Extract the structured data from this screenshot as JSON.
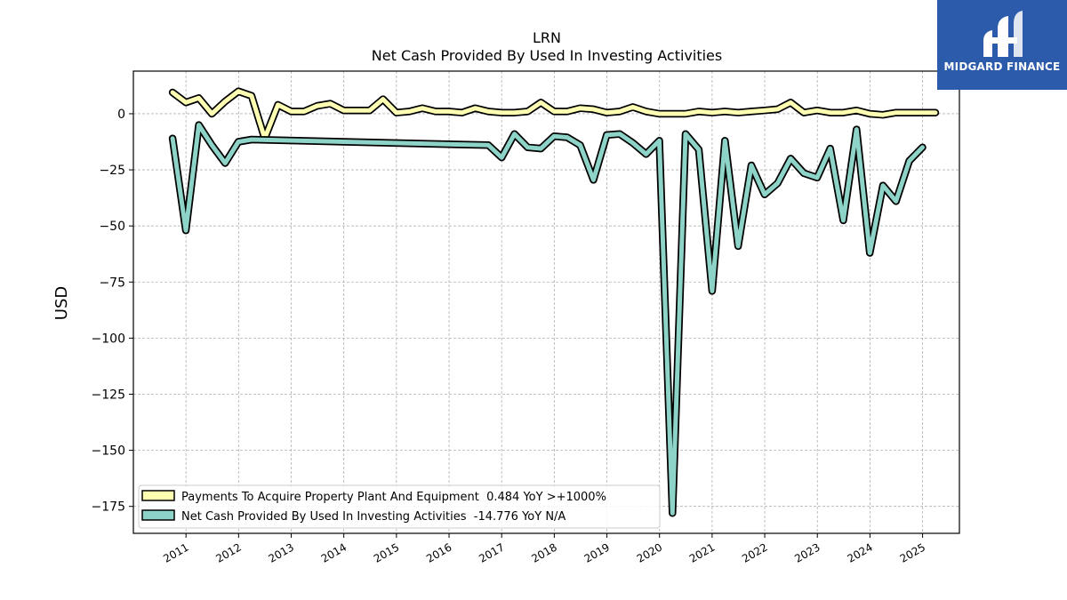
{
  "brand": {
    "name": "MIDGARD FINANCE",
    "color": "#2b5baa"
  },
  "chart_data": {
    "type": "line",
    "title": "LRN",
    "subtitle": "Net Cash Provided By Used In Investing Activities",
    "ylabel": "USD",
    "xlabel": "",
    "ylim": [
      -187,
      19
    ],
    "xlim": [
      2010.0,
      2025.7
    ],
    "yticks": [
      0,
      -25,
      -50,
      -75,
      -100,
      -125,
      -150,
      -175
    ],
    "xticks": [
      2011,
      2012,
      2013,
      2014,
      2015,
      2016,
      2017,
      2018,
      2019,
      2020,
      2021,
      2022,
      2023,
      2024,
      2025
    ],
    "grid": true,
    "legend_position": "lower-left",
    "series": [
      {
        "name": "Payments To Acquire Property Plant And Equipment  0.484 YoY >+1000%",
        "color": "#ffffb3",
        "x": [
          "2010-09-30",
          "2010-12-31",
          "2011-03-31",
          "2011-06-30",
          "2011-09-30",
          "2011-12-31",
          "2012-03-31",
          "2012-06-30",
          "2012-09-30",
          "2012-12-31",
          "2013-03-31",
          "2013-06-30",
          "2013-09-30",
          "2013-12-31",
          "2014-03-31",
          "2014-06-30",
          "2014-09-30",
          "2014-12-31",
          "2015-03-31",
          "2015-06-30",
          "2015-09-30",
          "2015-12-31",
          "2016-03-31",
          "2016-06-30",
          "2016-09-30",
          "2016-12-31",
          "2017-03-31",
          "2017-06-30",
          "2017-09-30",
          "2017-12-31",
          "2018-03-31",
          "2018-06-30",
          "2018-09-30",
          "2018-12-31",
          "2019-03-31",
          "2019-06-30",
          "2019-09-30",
          "2019-12-31",
          "2020-03-31",
          "2020-06-30",
          "2020-09-30",
          "2020-12-31",
          "2021-03-31",
          "2021-06-30",
          "2021-09-30",
          "2021-12-31",
          "2022-03-31",
          "2022-06-30",
          "2022-09-30",
          "2022-12-31",
          "2023-03-31",
          "2023-06-30",
          "2023-09-30",
          "2023-12-31",
          "2024-03-31",
          "2024-06-30",
          "2024-09-30",
          "2024-12-31",
          "2025-03-31"
        ],
        "values": [
          9.5,
          5,
          7,
          0,
          5.5,
          10,
          8,
          -11,
          4,
          1,
          1,
          3.5,
          4.5,
          1.5,
          1.5,
          1.5,
          6.5,
          0.5,
          1,
          2.5,
          1,
          1,
          0.5,
          2.5,
          1,
          0.5,
          0.5,
          1,
          5,
          1,
          1,
          2.5,
          2,
          0.5,
          1,
          3,
          1,
          0,
          0,
          0,
          1,
          0.5,
          1,
          0.5,
          1,
          1.5,
          2,
          5,
          0.5,
          1.5,
          0.5,
          0.5,
          1.5,
          0,
          -0.5,
          0.5,
          0.5,
          0.5,
          0.5
        ]
      },
      {
        "name": "Net Cash Provided By Used In Investing Activities  -14.776 YoY N/A",
        "color": "#8dd3c7",
        "x": [
          "2010-09-30",
          "2010-12-31",
          "2011-03-31",
          "2011-06-30",
          "2011-09-30",
          "2011-12-31",
          "2012-03-31",
          "2016-09-30",
          "2016-12-31",
          "2017-03-31",
          "2017-06-30",
          "2017-09-30",
          "2017-12-31",
          "2018-03-31",
          "2018-06-30",
          "2018-09-30",
          "2018-12-31",
          "2019-03-31",
          "2019-06-30",
          "2019-09-30",
          "2019-12-31",
          "2020-03-31",
          "2020-06-30",
          "2020-09-30",
          "2020-12-31",
          "2021-03-31",
          "2021-06-30",
          "2021-09-30",
          "2021-12-31",
          "2022-03-31",
          "2022-06-30",
          "2022-09-30",
          "2022-12-31",
          "2023-03-31",
          "2023-06-30",
          "2023-09-30",
          "2023-12-31",
          "2024-03-31",
          "2024-06-30",
          "2024-09-30",
          "2024-12-31"
        ],
        "values": [
          -11,
          -52,
          -5,
          -14,
          -22,
          -12.5,
          -11.5,
          -14,
          -19.5,
          -9,
          -15,
          -15.5,
          -10,
          -10.5,
          -14,
          -29.5,
          -9.5,
          -9,
          -13,
          -18,
          -12,
          -178,
          -9,
          -16,
          -79,
          -12,
          -59,
          -23,
          -36,
          -31,
          -20,
          -26.5,
          -28.5,
          -15.5,
          -47.5,
          -7,
          -62,
          -32,
          -39,
          -21,
          -15
        ]
      }
    ]
  }
}
